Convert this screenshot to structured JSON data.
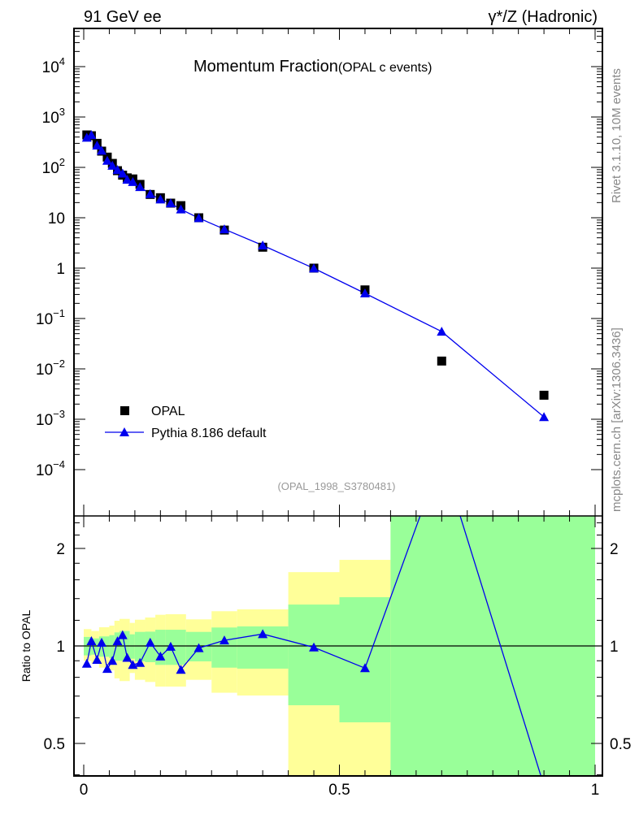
{
  "header": {
    "left": "91 GeV ee",
    "right": "γ*/Z (Hadronic)"
  },
  "side_labels": {
    "rivet": "Rivet 3.1.10,  10M events",
    "mcplots": "mcplots.cern.ch [arXiv:1306.3436]"
  },
  "chart_data": {
    "type": "scatter",
    "title": "Momentum Fraction",
    "subtitle": "(OPAL c events)",
    "analysis_id": "(OPAL_1998_S3780481)",
    "xlabel": "",
    "ylabel": "",
    "xlim": [
      -0.019,
      1.014
    ],
    "ylim": [
      1.2e-05,
      55000.0
    ],
    "yscale": "log",
    "x_ticks": [
      "0",
      "0.5",
      "1"
    ],
    "x_tick_values": [
      0,
      0.5,
      1
    ],
    "y_ticks": [
      {
        "value": 10000,
        "base": "10",
        "exp": "4"
      },
      {
        "value": 1000,
        "base": "10",
        "exp": "3"
      },
      {
        "value": 100,
        "base": "10",
        "exp": "2"
      },
      {
        "value": 10,
        "base": "10",
        "exp": ""
      },
      {
        "value": 1,
        "base": "1",
        "exp": ""
      },
      {
        "value": 0.1,
        "base": "10",
        "exp": "−1"
      },
      {
        "value": 0.01,
        "base": "10",
        "exp": "−2"
      },
      {
        "value": 0.001,
        "base": "10",
        "exp": "−3"
      },
      {
        "value": 0.0001,
        "base": "10",
        "exp": "−4"
      }
    ],
    "legend": {
      "placement": "bottom-left",
      "entries": [
        "OPAL",
        "Pythia 8.186 default"
      ]
    },
    "x": [
      0.006,
      0.015,
      0.026,
      0.035,
      0.046,
      0.056,
      0.066,
      0.076,
      0.085,
      0.096,
      0.11,
      0.13,
      0.15,
      0.17,
      0.19,
      0.225,
      0.275,
      0.35,
      0.45,
      0.55,
      0.7,
      0.9
    ],
    "series": [
      {
        "name": "OPAL",
        "color": "#000000",
        "marker": "square",
        "values": [
          441,
          425,
          300,
          210,
          160,
          120,
          86,
          70,
          62,
          59,
          46,
          29,
          25,
          19.5,
          17.4,
          10,
          5.7,
          2.6,
          1.0,
          0.37,
          0.0143,
          0.003
        ]
      },
      {
        "name": "Pythia 8.186 default",
        "color": "#0000ee",
        "marker": "triangle",
        "values": [
          389,
          440,
          272,
          215,
          136,
          108,
          89,
          75.6,
          57,
          51.6,
          40.8,
          29.7,
          23.2,
          19.4,
          14.7,
          9.85,
          5.93,
          2.83,
          0.99,
          0.316,
          0.055,
          0.00111
        ]
      }
    ],
    "ratio": {
      "ylabel": "Ratio to OPAL",
      "ylim": [
        0.397,
        2.52
      ],
      "yscale": "log",
      "y_ticks": [
        "0.5",
        "1",
        "2"
      ],
      "y_tick_values": [
        0.5,
        1,
        2
      ],
      "bands": {
        "edges": [
          0,
          0.015,
          0.03,
          0.05,
          0.06,
          0.07,
          0.09,
          0.1,
          0.12,
          0.14,
          0.16,
          0.2,
          0.25,
          0.3,
          0.4,
          0.5,
          0.6,
          1.0
        ],
        "stat_lo": [
          0.935,
          0.94,
          0.926,
          0.917,
          0.9,
          0.9,
          0.913,
          0.896,
          0.891,
          0.874,
          0.874,
          0.896,
          0.857,
          0.851,
          0.656,
          0.581,
          0.3
        ],
        "stat_hi": [
          1.066,
          1.055,
          1.07,
          1.08,
          1.101,
          1.112,
          1.086,
          1.105,
          1.107,
          1.122,
          1.122,
          1.105,
          1.14,
          1.149,
          1.342,
          1.414,
          3.0
        ],
        "total_lo": [
          0.9,
          0.882,
          0.857,
          0.841,
          0.794,
          0.779,
          0.825,
          0.786,
          0.774,
          0.749,
          0.749,
          0.786,
          0.717,
          0.703,
          0.3,
          0.3,
          0.3
        ],
        "total_hi": [
          1.127,
          1.112,
          1.142,
          1.155,
          1.196,
          1.212,
          1.178,
          1.205,
          1.224,
          1.248,
          1.253,
          1.208,
          1.28,
          1.297,
          1.69,
          1.844,
          3.0
        ],
        "stat_color": "#99ff99",
        "total_color": "#ffff99"
      }
    }
  }
}
